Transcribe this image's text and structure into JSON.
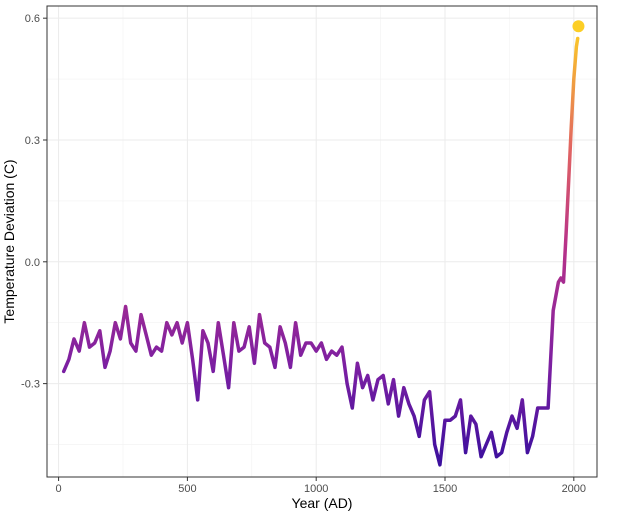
{
  "chart_data": {
    "type": "line",
    "title": "",
    "xlabel": "Year (AD)",
    "ylabel": "Temperature Deviation (C)",
    "xlim": [
      -45,
      2090
    ],
    "ylim": [
      -0.53,
      0.63
    ],
    "xticks": [
      0,
      500,
      1000,
      1500,
      2000
    ],
    "xtick_labels": [
      "0",
      "500",
      "1000",
      "1500",
      "2000"
    ],
    "yticks": [
      -0.3,
      0.0,
      0.3,
      0.6
    ],
    "ytick_labels": [
      "-0.3",
      "0.0",
      "0.3",
      "0.6"
    ],
    "grid": true,
    "legend": "none",
    "color_scale": {
      "name": "plasma",
      "low": "#3b0f9e",
      "mid_low": "#7b1fa2",
      "mid": "#b83289",
      "mid_high": "#e16462",
      "high": "#fcce25"
    },
    "series": [
      {
        "x": [
          20,
          40,
          60,
          80,
          100,
          120,
          140,
          160,
          180,
          200,
          220,
          240,
          260,
          280,
          300,
          320,
          340,
          360,
          380,
          400,
          420,
          440,
          460,
          480,
          500,
          520,
          540,
          560,
          580,
          600,
          620,
          640,
          660,
          680,
          700,
          720,
          740,
          760,
          780,
          800,
          820,
          840,
          860,
          880,
          900,
          920,
          940,
          960,
          980,
          1000,
          1020,
          1040,
          1060,
          1080,
          1100,
          1120,
          1140,
          1160,
          1180,
          1200,
          1220,
          1240,
          1260,
          1280,
          1300,
          1320,
          1340,
          1360,
          1380,
          1400,
          1420,
          1440,
          1460,
          1480,
          1500,
          1520,
          1540,
          1560,
          1580,
          1600,
          1620,
          1640,
          1660,
          1680,
          1700,
          1720,
          1740,
          1760,
          1780,
          1800,
          1820,
          1840,
          1860,
          1880,
          1900,
          1920,
          1940,
          1950,
          1960,
          1970,
          1980,
          1990,
          2000,
          2010,
          2015
        ],
        "y": [
          -0.27,
          -0.24,
          -0.19,
          -0.22,
          -0.15,
          -0.21,
          -0.2,
          -0.17,
          -0.26,
          -0.22,
          -0.15,
          -0.19,
          -0.11,
          -0.2,
          -0.22,
          -0.13,
          -0.18,
          -0.23,
          -0.21,
          -0.22,
          -0.15,
          -0.18,
          -0.15,
          -0.2,
          -0.15,
          -0.24,
          -0.34,
          -0.17,
          -0.2,
          -0.27,
          -0.15,
          -0.23,
          -0.31,
          -0.15,
          -0.22,
          -0.21,
          -0.16,
          -0.25,
          -0.13,
          -0.2,
          -0.21,
          -0.26,
          -0.16,
          -0.2,
          -0.26,
          -0.15,
          -0.23,
          -0.2,
          -0.2,
          -0.22,
          -0.2,
          -0.24,
          -0.22,
          -0.23,
          -0.21,
          -0.3,
          -0.36,
          -0.25,
          -0.31,
          -0.28,
          -0.34,
          -0.29,
          -0.28,
          -0.35,
          -0.29,
          -0.38,
          -0.31,
          -0.35,
          -0.38,
          -0.43,
          -0.34,
          -0.32,
          -0.45,
          -0.5,
          -0.39,
          -0.39,
          -0.38,
          -0.34,
          -0.47,
          -0.38,
          -0.4,
          -0.48,
          -0.45,
          -0.42,
          -0.48,
          -0.47,
          -0.42,
          -0.38,
          -0.41,
          -0.34,
          -0.47,
          -0.43,
          -0.36,
          -0.36,
          -0.36,
          -0.12,
          -0.05,
          -0.04,
          -0.05,
          0.07,
          0.2,
          0.33,
          0.45,
          0.53,
          0.55
        ]
      }
    ],
    "highlight_point": {
      "x": 2018,
      "y": 0.58
    }
  }
}
